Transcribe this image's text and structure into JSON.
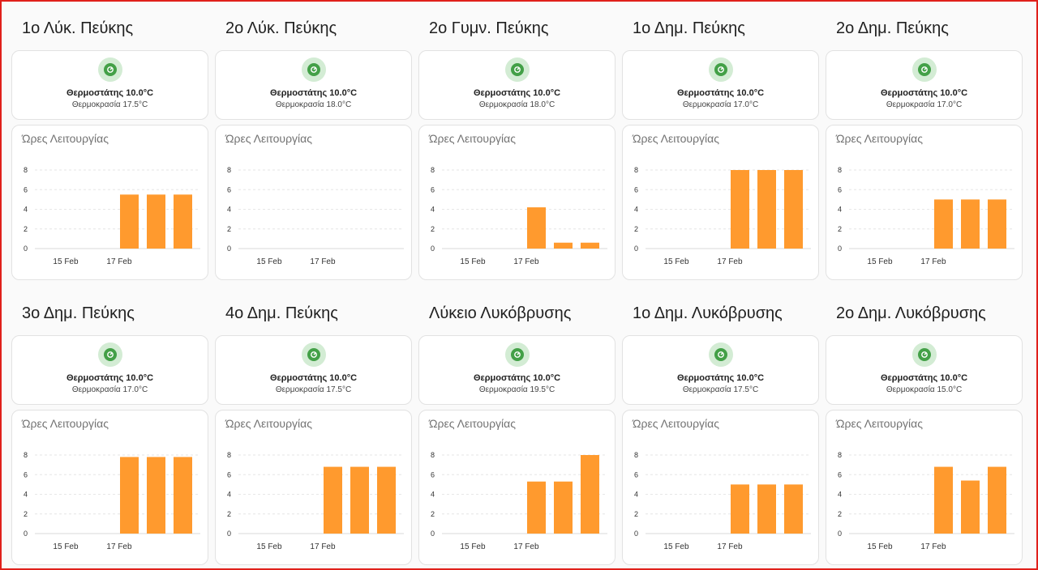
{
  "common": {
    "thermostat_label": "Θερμοστάτης",
    "temperature_label": "Θερμοκρασία",
    "chart_title": "Ώρες Λειτουργίας",
    "icon": "thermostat-icon",
    "bar_color": "#ff9a2e",
    "icon_color": "#43a047"
  },
  "panels": [
    {
      "title": "1ο Λύκ. Πεύκης",
      "thermostat": "Θερμοστάτης 10.0°C",
      "temperature": "Θερμοκρασία 17.5°C"
    },
    {
      "title": "2ο Λύκ. Πεύκης",
      "thermostat": "Θερμοστάτης 10.0°C",
      "temperature": "Θερμοκρασία 18.0°C"
    },
    {
      "title": "2ο Γυμν. Πεύκης",
      "thermostat": "Θερμοστάτης 10.0°C",
      "temperature": "Θερμοκρασία 18.0°C"
    },
    {
      "title": "1ο Δημ. Πεύκης",
      "thermostat": "Θερμοστάτης 10.0°C",
      "temperature": "Θερμοκρασία 17.0°C"
    },
    {
      "title": "2ο Δημ. Πεύκης",
      "thermostat": "Θερμοστάτης 10.0°C",
      "temperature": "Θερμοκρασία 17.0°C"
    },
    {
      "title": "3ο Δημ. Πεύκης",
      "thermostat": "Θερμοστάτης 10.0°C",
      "temperature": "Θερμοκρασία 17.0°C"
    },
    {
      "title": "4ο Δημ. Πεύκης",
      "thermostat": "Θερμοστάτης 10.0°C",
      "temperature": "Θερμοκρασία 17.5°C"
    },
    {
      "title": "Λύκειο Λυκόβρυσης",
      "thermostat": "Θερμοστάτης 10.0°C",
      "temperature": "Θερμοκρασία 19.5°C"
    },
    {
      "title": "1ο Δημ. Λυκόβρυσης",
      "thermostat": "Θερμοστάτης 10.0°C",
      "temperature": "Θερμοκρασία 17.5°C"
    },
    {
      "title": "2ο Δημ. Λυκόβρυσης",
      "thermostat": "Θερμοστάτης 10.0°C",
      "temperature": "Θερμοκρασία 15.0°C"
    }
  ],
  "chart_data": [
    {
      "type": "bar",
      "title": "Ώρες Λειτουργίας",
      "x_ticks": [
        "15 Feb",
        "17 Feb"
      ],
      "y_ticks": [
        "0",
        "2",
        "4",
        "6",
        "8"
      ],
      "ylim": [
        0,
        8
      ],
      "grid": true,
      "series": [
        {
          "values": [
            0,
            0,
            0,
            5.5,
            5.5,
            5.5
          ]
        }
      ]
    },
    {
      "type": "bar",
      "title": "Ώρες Λειτουργίας",
      "x_ticks": [
        "15 Feb",
        "17 Feb"
      ],
      "y_ticks": [
        "0",
        "2",
        "4",
        "6",
        "8"
      ],
      "ylim": [
        0,
        8
      ],
      "grid": true,
      "series": [
        {
          "values": [
            0,
            0,
            0,
            0,
            0,
            0
          ]
        }
      ]
    },
    {
      "type": "bar",
      "title": "Ώρες Λειτουργίας",
      "x_ticks": [
        "15 Feb",
        "17 Feb"
      ],
      "y_ticks": [
        "0",
        "2",
        "4",
        "6",
        "8"
      ],
      "ylim": [
        0,
        8
      ],
      "grid": true,
      "series": [
        {
          "values": [
            0,
            0,
            0,
            4.2,
            0.6,
            0.6
          ]
        }
      ]
    },
    {
      "type": "bar",
      "title": "Ώρες Λειτουργίας",
      "x_ticks": [
        "15 Feb",
        "17 Feb"
      ],
      "y_ticks": [
        "0",
        "2",
        "4",
        "6",
        "8"
      ],
      "ylim": [
        0,
        8
      ],
      "grid": true,
      "series": [
        {
          "values": [
            0,
            0,
            0,
            8.0,
            8.0,
            8.0
          ]
        }
      ]
    },
    {
      "type": "bar",
      "title": "Ώρες Λειτουργίας",
      "x_ticks": [
        "15 Feb",
        "17 Feb"
      ],
      "y_ticks": [
        "0",
        "2",
        "4",
        "6",
        "8"
      ],
      "ylim": [
        0,
        8
      ],
      "grid": true,
      "series": [
        {
          "values": [
            0,
            0,
            0,
            5.0,
            5.0,
            5.0
          ]
        }
      ]
    },
    {
      "type": "bar",
      "title": "Ώρες Λειτουργίας",
      "x_ticks": [
        "15 Feb",
        "17 Feb"
      ],
      "y_ticks": [
        "0",
        "2",
        "4",
        "6",
        "8"
      ],
      "ylim": [
        0,
        8
      ],
      "grid": true,
      "series": [
        {
          "values": [
            0,
            0,
            0,
            7.8,
            7.8,
            7.8
          ]
        }
      ]
    },
    {
      "type": "bar",
      "title": "Ώρες Λειτουργίας",
      "x_ticks": [
        "15 Feb",
        "17 Feb"
      ],
      "y_ticks": [
        "0",
        "2",
        "4",
        "6",
        "8"
      ],
      "ylim": [
        0,
        8
      ],
      "grid": true,
      "series": [
        {
          "values": [
            0,
            0,
            0,
            6.8,
            6.8,
            6.8
          ]
        }
      ]
    },
    {
      "type": "bar",
      "title": "Ώρες Λειτουργίας",
      "x_ticks": [
        "15 Feb",
        "17 Feb"
      ],
      "y_ticks": [
        "0",
        "2",
        "4",
        "6",
        "8"
      ],
      "ylim": [
        0,
        8
      ],
      "grid": true,
      "series": [
        {
          "values": [
            0,
            0,
            0,
            5.3,
            5.3,
            8.0
          ]
        }
      ]
    },
    {
      "type": "bar",
      "title": "Ώρες Λειτουργίας",
      "x_ticks": [
        "15 Feb",
        "17 Feb"
      ],
      "y_ticks": [
        "0",
        "2",
        "4",
        "6",
        "8"
      ],
      "ylim": [
        0,
        8
      ],
      "grid": true,
      "series": [
        {
          "values": [
            0,
            0,
            0,
            5.0,
            5.0,
            5.0
          ]
        }
      ]
    },
    {
      "type": "bar",
      "title": "Ώρες Λειτουργίας",
      "x_ticks": [
        "15 Feb",
        "17 Feb"
      ],
      "y_ticks": [
        "0",
        "2",
        "4",
        "6",
        "8"
      ],
      "ylim": [
        0,
        8
      ],
      "grid": true,
      "series": [
        {
          "values": [
            0,
            0,
            0,
            6.8,
            5.4,
            6.8
          ]
        }
      ]
    }
  ]
}
